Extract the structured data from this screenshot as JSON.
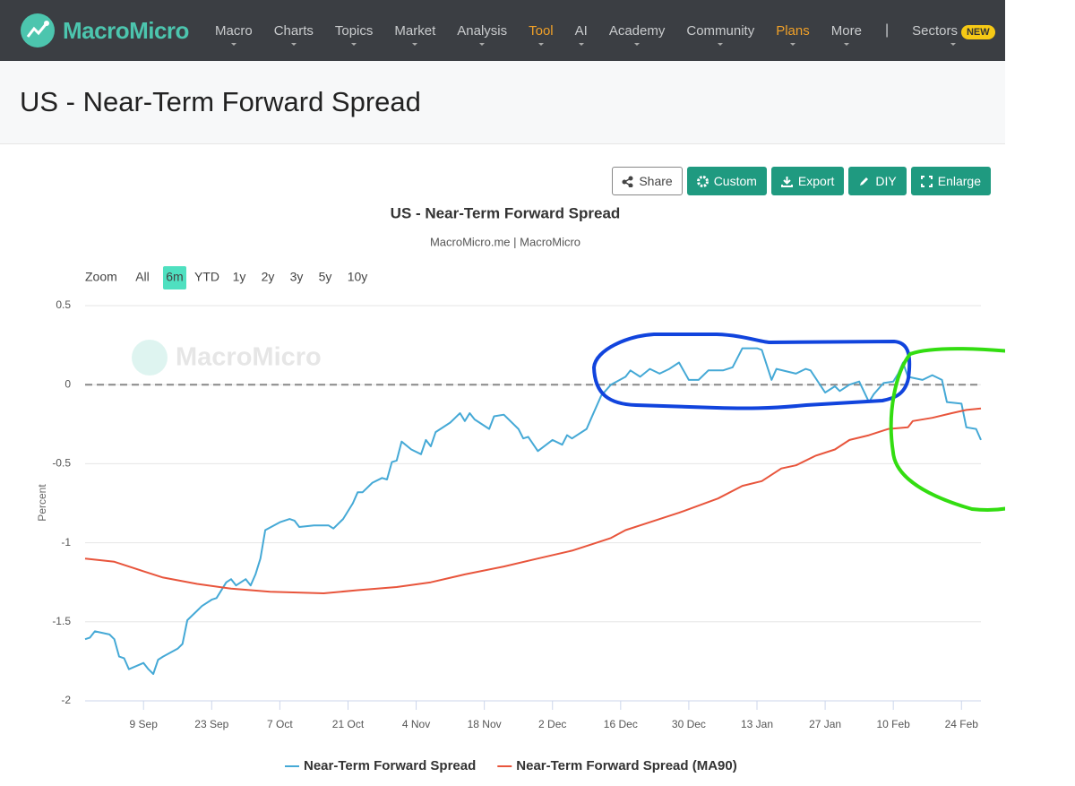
{
  "nav": {
    "logo": "MacroMicro",
    "items": [
      "Macro",
      "Charts",
      "Topics",
      "Market",
      "Analysis",
      "Tool",
      "AI",
      "Academy",
      "Community",
      "Plans",
      "More"
    ],
    "highlighted": [
      "Tool",
      "Plans"
    ],
    "separator": "|",
    "sectors": "Sectors",
    "badge": "NEW"
  },
  "header": {
    "title": "US - Near-Term Forward Spread"
  },
  "toolbar": {
    "buttons": [
      "Share",
      "Custom",
      "Export",
      "DIY",
      "Enlarge"
    ]
  },
  "range_selector": {
    "label": "Zoom",
    "options": [
      "All",
      "6m",
      "YTD",
      "1y",
      "2y",
      "3y",
      "5y",
      "10y"
    ],
    "selected": "6m"
  },
  "chart_data": {
    "type": "line",
    "title": "US - Near-Term Forward Spread",
    "subtitle": "MacroMicro.me | MacroMicro",
    "watermark": "MacroMicro",
    "y_label": "Percent",
    "ylim": [
      -2,
      0.5
    ],
    "yticks": [
      0.5,
      0,
      -0.5,
      -1,
      -1.5,
      -2
    ],
    "xlim": [
      0,
      184
    ],
    "xticks": [
      {
        "value": 12,
        "label": "9 Sep"
      },
      {
        "value": 26,
        "label": "23 Sep"
      },
      {
        "value": 40,
        "label": "7 Oct"
      },
      {
        "value": 54,
        "label": "21 Oct"
      },
      {
        "value": 68,
        "label": "4 Nov"
      },
      {
        "value": 82,
        "label": "18 Nov"
      },
      {
        "value": 96,
        "label": "2 Dec"
      },
      {
        "value": 110,
        "label": "16 Dec"
      },
      {
        "value": 124,
        "label": "30 Dec"
      },
      {
        "value": 138,
        "label": "13 Jan"
      },
      {
        "value": 152,
        "label": "27 Jan"
      },
      {
        "value": 166,
        "label": "10 Feb"
      },
      {
        "value": 180,
        "label": "24 Feb"
      }
    ],
    "grid": true,
    "reference_line": 0,
    "series": [
      {
        "name": "Near-Term Forward Spread",
        "color": "#45a9d6",
        "x": [
          0,
          1,
          2,
          5,
          6,
          7,
          8,
          9,
          12,
          13,
          14,
          15,
          16,
          19,
          20,
          21,
          23,
          24,
          26,
          27,
          29,
          30,
          31,
          33,
          34,
          35,
          36,
          37,
          40,
          42,
          43,
          44,
          47,
          50,
          51,
          53,
          55,
          56,
          57,
          59,
          61,
          62,
          63,
          64,
          65,
          67,
          69,
          70,
          71,
          72,
          75,
          77,
          78,
          79,
          80,
          83,
          84,
          86,
          89,
          90,
          91,
          93,
          96,
          98,
          99,
          100,
          103,
          104,
          106,
          108,
          111,
          112,
          114,
          116,
          118,
          120,
          122,
          124,
          126,
          128,
          131,
          133,
          135,
          138,
          139,
          141,
          142,
          146,
          148,
          149,
          152,
          154,
          155,
          157,
          159,
          161,
          162,
          164,
          166,
          167,
          168,
          169,
          172,
          174,
          176,
          177,
          180,
          181,
          183,
          184
        ],
        "values": [
          -1.61,
          -1.6,
          -1.56,
          -1.58,
          -1.61,
          -1.72,
          -1.73,
          -1.8,
          -1.76,
          -1.8,
          -1.83,
          -1.74,
          -1.72,
          -1.67,
          -1.64,
          -1.49,
          -1.43,
          -1.4,
          -1.36,
          -1.35,
          -1.25,
          -1.23,
          -1.27,
          -1.23,
          -1.27,
          -1.2,
          -1.1,
          -0.92,
          -0.87,
          -0.85,
          -0.86,
          -0.9,
          -0.89,
          -0.89,
          -0.91,
          -0.85,
          -0.75,
          -0.68,
          -0.68,
          -0.62,
          -0.59,
          -0.6,
          -0.49,
          -0.48,
          -0.36,
          -0.41,
          -0.44,
          -0.35,
          -0.39,
          -0.3,
          -0.24,
          -0.18,
          -0.23,
          -0.18,
          -0.22,
          -0.28,
          -0.2,
          -0.19,
          -0.28,
          -0.34,
          -0.33,
          -0.42,
          -0.35,
          -0.38,
          -0.32,
          -0.34,
          -0.28,
          -0.21,
          -0.07,
          0,
          0.05,
          0.09,
          0.05,
          0.1,
          0.07,
          0.1,
          0.14,
          0.03,
          0.03,
          0.09,
          0.09,
          0.11,
          0.23,
          0.23,
          0.22,
          0.03,
          0.1,
          0.07,
          0.1,
          0.09,
          -0.05,
          -0.01,
          -0.04,
          0,
          0.02,
          -0.11,
          -0.06,
          0.01,
          0.02,
          0.07,
          0.14,
          0.05,
          0.03,
          0.06,
          0.03,
          -0.11,
          -0.12,
          -0.27,
          -0.28,
          -0.35
        ]
      },
      {
        "name": "Near-Term Forward Spread (MA90)",
        "color": "#e8553c",
        "x": [
          0,
          6,
          12,
          16,
          23,
          30,
          38,
          49,
          56,
          64,
          71,
          78,
          86,
          93,
          100,
          104,
          108,
          111,
          115,
          122,
          130,
          135,
          139,
          143,
          146,
          150,
          154,
          157,
          161,
          165,
          169,
          170,
          174,
          178,
          181,
          184
        ],
        "values": [
          -1.1,
          -1.12,
          -1.18,
          -1.22,
          -1.26,
          -1.29,
          -1.31,
          -1.32,
          -1.3,
          -1.28,
          -1.25,
          -1.2,
          -1.15,
          -1.1,
          -1.05,
          -1.01,
          -0.97,
          -0.92,
          -0.88,
          -0.81,
          -0.72,
          -0.64,
          -0.61,
          -0.53,
          -0.51,
          -0.45,
          -0.41,
          -0.35,
          -0.32,
          -0.28,
          -0.27,
          -0.23,
          -0.21,
          -0.18,
          -0.16,
          -0.15
        ]
      }
    ]
  }
}
